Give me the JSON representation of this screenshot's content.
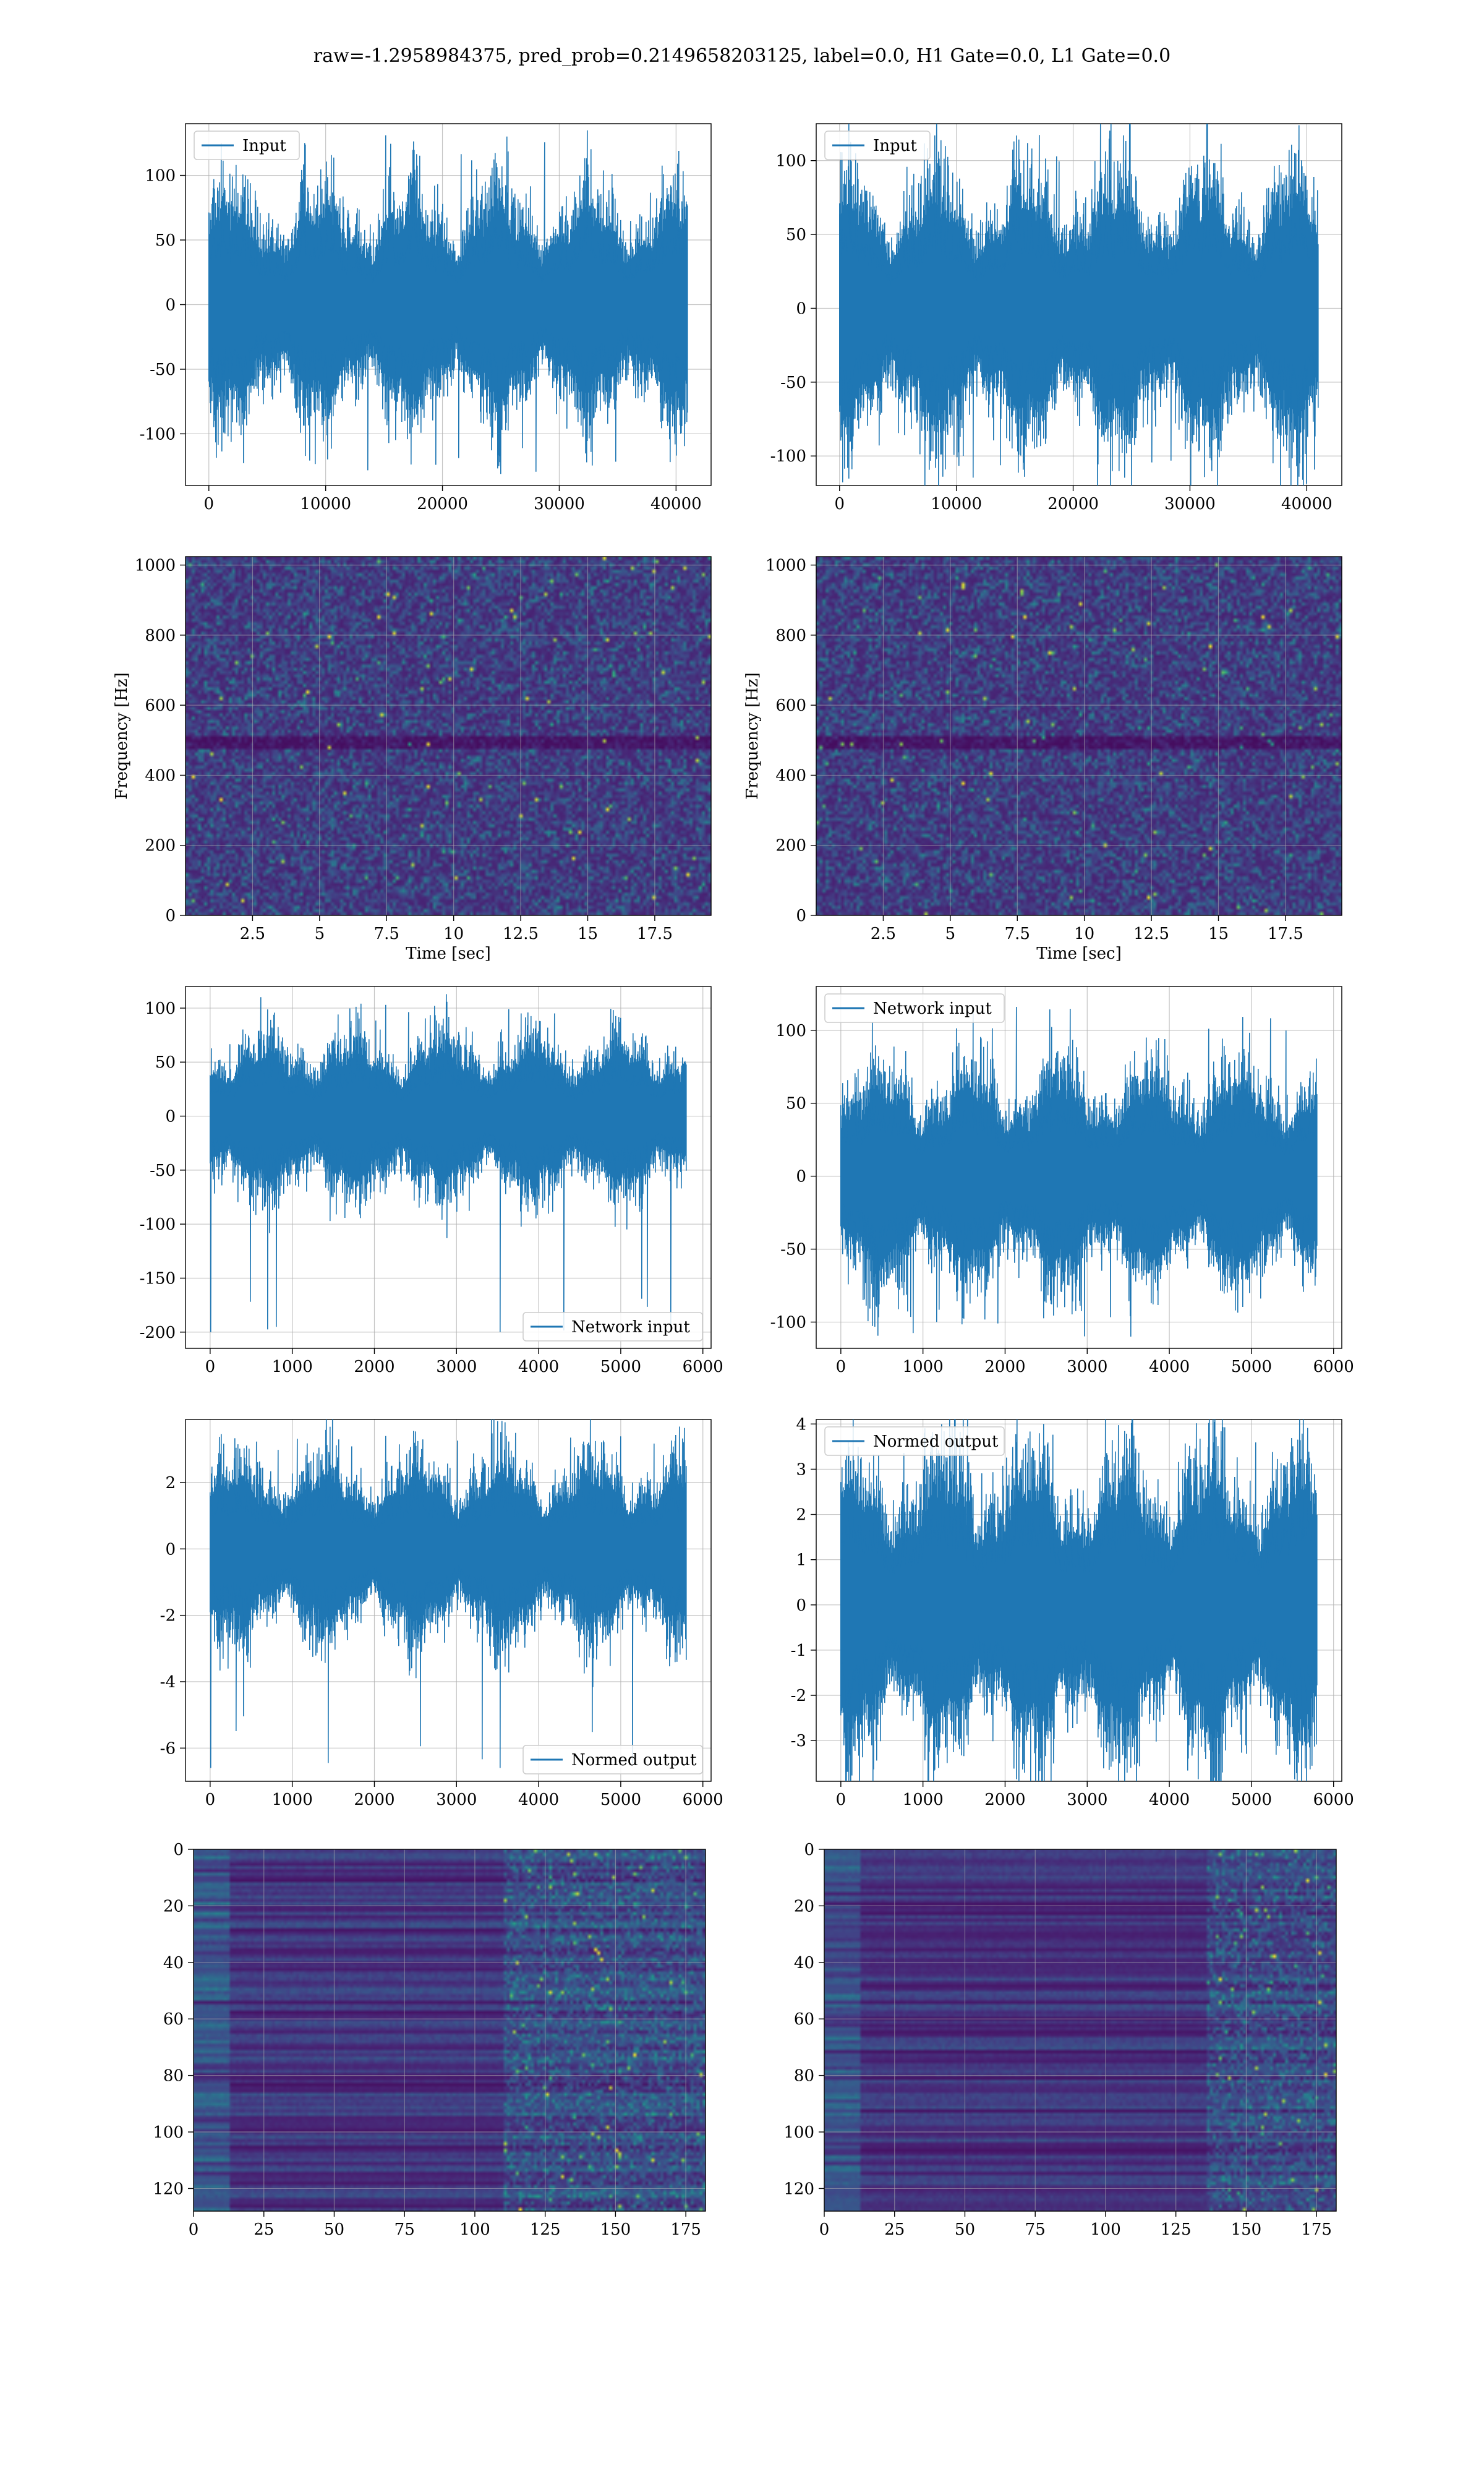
{
  "title": "raw=-1.2958984375, pred_prob=0.2149658203125, label=0.0, H1 Gate=0.0, L1 Gate=0.0",
  "colors": {
    "series": "#1f77b4",
    "grid": "#b0b0b0",
    "viridis_low": "#440154",
    "viridis_high": "#fde725"
  },
  "chart_data": [
    {
      "id": "r1c1",
      "type": "line",
      "legend": "Input",
      "legend_loc": "upper-left",
      "xlim": [
        -2000,
        43000
      ],
      "ylim": [
        -140,
        140
      ],
      "x_count": 40960,
      "xticks": [
        0,
        10000,
        20000,
        30000,
        40000
      ],
      "yticks": [
        -100,
        -50,
        0,
        50,
        100
      ],
      "amplitude": 26,
      "peak_max": 131,
      "peak_min": -131
    },
    {
      "id": "r1c2",
      "type": "line",
      "legend": "Input",
      "legend_loc": "upper-left",
      "xlim": [
        -2000,
        43000
      ],
      "ylim": [
        -120,
        125
      ],
      "x_count": 40960,
      "xticks": [
        0,
        10000,
        20000,
        30000,
        40000
      ],
      "yticks": [
        -100,
        -50,
        0,
        50,
        100
      ],
      "amplitude": 26,
      "peak_max": 117,
      "peak_min": -120
    },
    {
      "id": "r2c1",
      "type": "heatmap",
      "colormap": "viridis",
      "xlim": [
        0,
        19.6
      ],
      "ylim": [
        0,
        1024
      ],
      "xticks": [
        2.5,
        5.0,
        7.5,
        10.0,
        12.5,
        15.0,
        17.5
      ],
      "yticks": [
        0,
        200,
        400,
        600,
        800,
        1000
      ],
      "xlabel": "Time [sec]",
      "ylabel": "Frequency [Hz]",
      "dark_band_hz": 500
    },
    {
      "id": "r2c2",
      "type": "heatmap",
      "colormap": "viridis",
      "xlim": [
        0,
        19.6
      ],
      "ylim": [
        0,
        1024
      ],
      "xticks": [
        2.5,
        5.0,
        7.5,
        10.0,
        12.5,
        15.0,
        17.5
      ],
      "yticks": [
        0,
        200,
        400,
        600,
        800,
        1000
      ],
      "xlabel": "Time [sec]",
      "ylabel": "Frequency [Hz]",
      "dark_band_hz": 500
    },
    {
      "id": "r3c1",
      "type": "line",
      "legend": "Network input",
      "legend_loc": "lower-right",
      "xlim": [
        -300,
        6100
      ],
      "ylim": [
        -215,
        120
      ],
      "x_count": 5800,
      "xticks": [
        0,
        1000,
        2000,
        3000,
        4000,
        5000,
        6000
      ],
      "yticks": [
        -200,
        -150,
        -100,
        -50,
        0,
        50,
        100
      ],
      "amplitude": 22,
      "peak_max": 103,
      "peak_min": -200
    },
    {
      "id": "r3c2",
      "type": "line",
      "legend": "Network input",
      "legend_loc": "upper-left",
      "xlim": [
        -300,
        6100
      ],
      "ylim": [
        -118,
        130
      ],
      "x_count": 5800,
      "xticks": [
        0,
        1000,
        2000,
        3000,
        4000,
        5000,
        6000
      ],
      "yticks": [
        -100,
        -50,
        0,
        50,
        100
      ],
      "amplitude": 22,
      "peak_max": 116,
      "peak_min": -110
    },
    {
      "id": "r4c1",
      "type": "line",
      "legend": "Normed output",
      "legend_loc": "lower-right",
      "xlim": [
        -300,
        6100
      ],
      "ylim": [
        -7.0,
        3.9
      ],
      "x_count": 5800,
      "xticks": [
        0,
        1000,
        2000,
        3000,
        4000,
        5000,
        6000
      ],
      "yticks": [
        -6,
        -4,
        -2,
        0,
        2
      ],
      "amplitude": 0.8,
      "peak_max": 3.4,
      "peak_min": -6.6
    },
    {
      "id": "r4c2",
      "type": "line",
      "legend": "Normed output",
      "legend_loc": "upper-left",
      "xlim": [
        -300,
        6100
      ],
      "ylim": [
        -3.9,
        4.1
      ],
      "x_count": 5800,
      "xticks": [
        0,
        1000,
        2000,
        3000,
        4000,
        5000,
        6000
      ],
      "yticks": [
        -3,
        -2,
        -1,
        0,
        1,
        2,
        3,
        4
      ],
      "amplitude": 0.95,
      "peak_max": 3.6,
      "peak_min": -3.6
    },
    {
      "id": "r5c1",
      "type": "heatmap",
      "colormap": "viridis",
      "xlim": [
        0,
        182
      ],
      "ylim": [
        128,
        0
      ],
      "xticks": [
        0,
        25,
        50,
        75,
        100,
        125,
        150,
        175
      ],
      "yticks": [
        0,
        20,
        40,
        60,
        80,
        100,
        120
      ],
      "bright_region_x": [
        110,
        180
      ]
    },
    {
      "id": "r5c2",
      "type": "heatmap",
      "colormap": "viridis",
      "xlim": [
        0,
        182
      ],
      "ylim": [
        128,
        0
      ],
      "xticks": [
        0,
        25,
        50,
        75,
        100,
        125,
        150,
        175
      ],
      "yticks": [
        0,
        20,
        40,
        60,
        80,
        100,
        120
      ],
      "bright_region_x": [
        135,
        180
      ]
    }
  ]
}
